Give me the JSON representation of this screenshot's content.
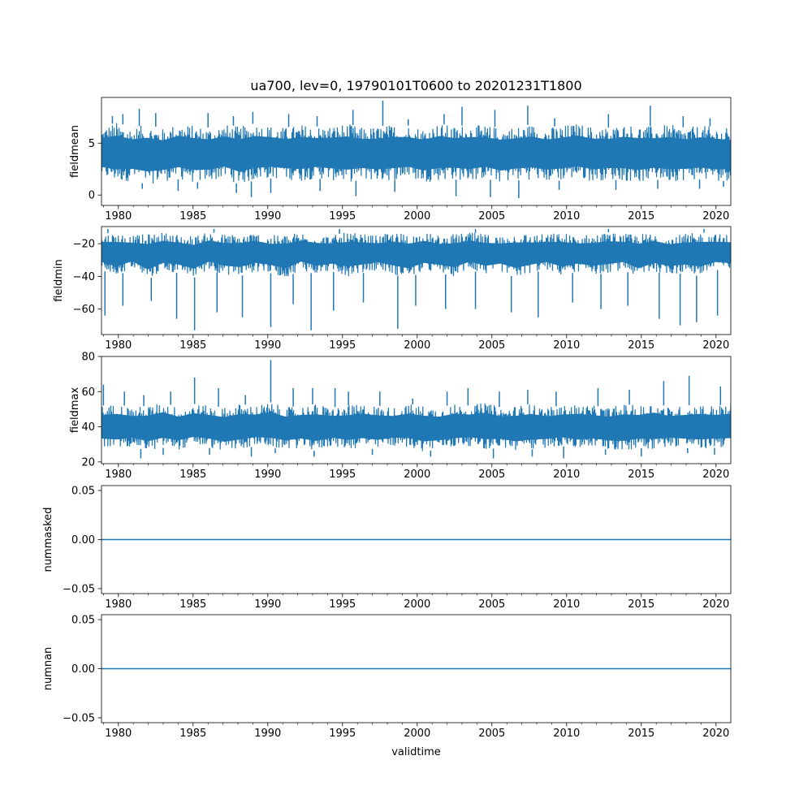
{
  "figure": {
    "title": "ua700, lev=0, 19790101T0600 to 20201231T1800",
    "xlabel": "validtime"
  },
  "chart_data": [
    {
      "type": "line",
      "ylabel": "fieldmean",
      "xlim": [
        1978.87,
        2020.99
      ],
      "ylim": [
        -1.0,
        9.4
      ],
      "yticks": [
        0,
        5
      ],
      "xticks": [
        1980,
        1985,
        1990,
        1995,
        2000,
        2005,
        2010,
        2015,
        2020
      ],
      "series": [
        {
          "color": "#1f77b4",
          "band_low": [
            1.6,
            1.2,
            1.4,
            1.0,
            1.3,
            1.5,
            1.2,
            1.3,
            1.6,
            1.0,
            1.4,
            1.6,
            1.5,
            1.3,
            1.6,
            1.4,
            1.2,
            1.5,
            1.3,
            1.4,
            1.6,
            1.2,
            1.4,
            1.5,
            1.3,
            1.6,
            1.2,
            1.4,
            1.5,
            1.3,
            1.4,
            1.6,
            1.3,
            1.5,
            1.4,
            1.2,
            1.5,
            1.3,
            1.4,
            1.5,
            1.3,
            1.4
          ],
          "band_high": [
            6.6,
            7.0,
            6.5,
            6.8,
            6.4,
            6.9,
            6.7,
            6.5,
            6.8,
            6.6,
            6.9,
            6.7,
            6.5,
            6.8,
            6.6,
            6.7,
            6.9,
            6.5,
            6.6,
            6.8,
            6.7,
            6.5,
            6.9,
            6.6,
            6.8,
            6.7,
            6.5,
            6.6,
            6.8,
            6.5,
            6.7,
            6.9,
            6.6,
            6.5,
            6.8,
            6.7,
            6.6,
            6.8,
            6.5,
            6.7,
            6.6,
            6.4
          ],
          "spikes_high": [
            [
              1979.6,
              7.6
            ],
            [
              1980.3,
              7.8
            ],
            [
              1981.4,
              8.3
            ],
            [
              1982.5,
              7.9
            ],
            [
              1986.0,
              7.9
            ],
            [
              1987.7,
              7.6
            ],
            [
              1989.0,
              8.0
            ],
            [
              1991.4,
              7.8
            ],
            [
              1993.3,
              7.6
            ],
            [
              1995.7,
              8.2
            ],
            [
              1997.7,
              9.1
            ],
            [
              1999.4,
              7.3
            ],
            [
              2001.8,
              7.8
            ],
            [
              2003.0,
              8.5
            ],
            [
              2005.2,
              8.2
            ],
            [
              2007.4,
              8.6
            ],
            [
              2009.2,
              7.4
            ],
            [
              2012.8,
              7.8
            ],
            [
              2015.6,
              8.6
            ],
            [
              2017.8,
              7.6
            ],
            [
              2019.6,
              7.4
            ]
          ],
          "spikes_low": [
            [
              1981.6,
              0.6
            ],
            [
              1984.0,
              0.4
            ],
            [
              1985.3,
              0.6
            ],
            [
              1987.9,
              0.2
            ],
            [
              1988.9,
              -0.2
            ],
            [
              1990.2,
              0.2
            ],
            [
              1993.5,
              0.4
            ],
            [
              1995.9,
              -0.1
            ],
            [
              1998.5,
              0.3
            ],
            [
              2002.6,
              -0.1
            ],
            [
              2004.9,
              -0.2
            ],
            [
              2006.8,
              -0.3
            ],
            [
              2009.5,
              0.5
            ],
            [
              2013.3,
              0.5
            ],
            [
              2016.1,
              0.6
            ],
            [
              2018.9,
              0.6
            ],
            [
              2020.5,
              0.8
            ]
          ]
        }
      ]
    },
    {
      "type": "line",
      "ylabel": "fieldmin",
      "xlim": [
        1978.87,
        2020.99
      ],
      "ylim": [
        -75.6,
        -9.5
      ],
      "yticks": [
        -60,
        -40,
        -20
      ],
      "xticks": [
        1980,
        1985,
        1990,
        1995,
        2000,
        2005,
        2010,
        2015,
        2020
      ],
      "series": [
        {
          "color": "#1f77b4",
          "band_low": [
            -36,
            -40,
            -35,
            -42,
            -37,
            -38,
            -41,
            -36,
            -39,
            -40,
            -37,
            -38,
            -41,
            -36,
            -39,
            -37,
            -40,
            -38,
            -36,
            -39,
            -41,
            -37,
            -38,
            -40,
            -36,
            -39,
            -37,
            -41,
            -38,
            -36,
            -40,
            -37,
            -39,
            -38,
            -36,
            -41,
            -37,
            -39,
            -38,
            -40,
            -36,
            -37
          ],
          "band_high": [
            -14,
            -13,
            -15,
            -14,
            -13,
            -14,
            -15,
            -13,
            -14,
            -14,
            -13,
            -15,
            -14,
            -13,
            -14,
            -15,
            -13,
            -14,
            -15,
            -13,
            -14,
            -13,
            -15,
            -14,
            -13,
            -14,
            -15,
            -13,
            -14,
            -14,
            -13,
            -15,
            -14,
            -13,
            -14,
            -14,
            -13,
            -15,
            -14,
            -13,
            -14,
            -14
          ],
          "spikes_high": [
            [
              1979.3,
              -11
            ],
            [
              1986.4,
              -11
            ],
            [
              1994.8,
              -11
            ],
            [
              2003.9,
              -11
            ],
            [
              2012.8,
              -11
            ],
            [
              2019.2,
              -11
            ]
          ],
          "spikes_low": [
            [
              1979.1,
              -64
            ],
            [
              1980.3,
              -58
            ],
            [
              1982.2,
              -55
            ],
            [
              1983.9,
              -66
            ],
            [
              1985.1,
              -73
            ],
            [
              1986.6,
              -62
            ],
            [
              1988.3,
              -65
            ],
            [
              1990.2,
              -71
            ],
            [
              1991.7,
              -57
            ],
            [
              1992.9,
              -73
            ],
            [
              1994.4,
              -61
            ],
            [
              1996.4,
              -56
            ],
            [
              1998.7,
              -72
            ],
            [
              1999.9,
              -58
            ],
            [
              2001.9,
              -60
            ],
            [
              2003.9,
              -60
            ],
            [
              2006.3,
              -62
            ],
            [
              2008.1,
              -65
            ],
            [
              2010.4,
              -56
            ],
            [
              2012.3,
              -60
            ],
            [
              2014.1,
              -58
            ],
            [
              2016.2,
              -66
            ],
            [
              2017.6,
              -70
            ],
            [
              2018.7,
              -68
            ],
            [
              2020.1,
              -64
            ]
          ]
        }
      ]
    },
    {
      "type": "line",
      "ylabel": "fieldmax",
      "xlim": [
        1978.87,
        2020.99
      ],
      "ylim": [
        19.0,
        80.0
      ],
      "yticks": [
        20,
        40,
        60,
        80
      ],
      "xticks": [
        1980,
        1985,
        1990,
        1995,
        2000,
        2005,
        2010,
        2015,
        2020
      ],
      "series": [
        {
          "color": "#1f77b4",
          "band_low": [
            28,
            27,
            29,
            26,
            28,
            27,
            29,
            28,
            26,
            27,
            29,
            28,
            27,
            28,
            26,
            29,
            27,
            28,
            27,
            29,
            28,
            26,
            27,
            28,
            29,
            27,
            28,
            26,
            27,
            28,
            29,
            27,
            28,
            27,
            26,
            28,
            27,
            29,
            28,
            27,
            28,
            28
          ],
          "band_high": [
            52,
            53,
            51,
            52,
            54,
            51,
            53,
            52,
            51,
            53,
            52,
            54,
            51,
            52,
            53,
            51,
            52,
            53,
            52,
            51,
            53,
            52,
            51,
            53,
            52,
            54,
            51,
            52,
            53,
            51,
            52,
            53,
            52,
            51,
            53,
            52,
            54,
            51,
            52,
            53,
            52,
            53
          ],
          "spikes_high": [
            [
              1979.0,
              64
            ],
            [
              1980.4,
              60
            ],
            [
              1981.7,
              58
            ],
            [
              1983.5,
              60
            ],
            [
              1985.1,
              68
            ],
            [
              1986.7,
              62
            ],
            [
              1988.5,
              58
            ],
            [
              1990.2,
              78
            ],
            [
              1991.7,
              62
            ],
            [
              1993.0,
              62
            ],
            [
              1994.5,
              62
            ],
            [
              1995.4,
              60
            ],
            [
              1997.5,
              60
            ],
            [
              1999.7,
              56
            ],
            [
              2002.0,
              60
            ],
            [
              2003.4,
              62
            ],
            [
              2005.5,
              60
            ],
            [
              2007.4,
              61
            ],
            [
              2009.3,
              60
            ],
            [
              2012.1,
              62
            ],
            [
              2014.2,
              61
            ],
            [
              2016.5,
              66
            ],
            [
              2018.2,
              69
            ],
            [
              2020.3,
              63
            ]
          ],
          "spikes_low": [
            [
              1981.5,
              22
            ],
            [
              1983.0,
              24
            ],
            [
              1986.1,
              24
            ],
            [
              1988.9,
              23
            ],
            [
              1990.5,
              25
            ],
            [
              1993.1,
              23
            ],
            [
              1997.0,
              24
            ],
            [
              2000.9,
              23
            ],
            [
              2005.1,
              22
            ],
            [
              2007.7,
              23
            ],
            [
              2009.8,
              22
            ],
            [
              2012.6,
              24
            ],
            [
              2015.0,
              23
            ],
            [
              2018.1,
              25
            ],
            [
              2019.9,
              24
            ]
          ]
        }
      ]
    },
    {
      "type": "line",
      "ylabel": "nummasked",
      "xlim": [
        1978.87,
        2020.99
      ],
      "ylim": [
        -0.055,
        0.055
      ],
      "yticks": [
        -0.05,
        0.0,
        0.05
      ],
      "ytick_labels": [
        "−0.05",
        "0.00",
        "0.05"
      ],
      "xticks": [
        1980,
        1985,
        1990,
        1995,
        2000,
        2005,
        2010,
        2015,
        2020
      ],
      "series": [
        {
          "color": "#1f77b4",
          "x": [
            1978.87,
            2020.99
          ],
          "y": [
            0,
            0
          ]
        }
      ]
    },
    {
      "type": "line",
      "ylabel": "numnan",
      "xlim": [
        1978.87,
        2020.99
      ],
      "ylim": [
        -0.055,
        0.055
      ],
      "yticks": [
        -0.05,
        0.0,
        0.05
      ],
      "ytick_labels": [
        "−0.05",
        "0.00",
        "0.05"
      ],
      "xticks": [
        1980,
        1985,
        1990,
        1995,
        2000,
        2005,
        2010,
        2015,
        2020
      ],
      "series": [
        {
          "color": "#1f77b4",
          "x": [
            1978.87,
            2020.99
          ],
          "y": [
            0,
            0
          ]
        }
      ]
    }
  ]
}
